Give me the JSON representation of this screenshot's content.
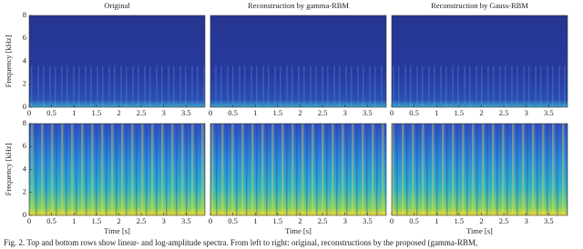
{
  "figure": {
    "titles": [
      "Original",
      "Reconstruction by gamma-RBM",
      "Reconstruction by Gauss-RBM"
    ],
    "rows": [
      {
        "ylabel": "Frequency [kHz]",
        "ylim": [
          0,
          8
        ],
        "yticks": [
          0,
          2,
          4,
          6,
          8
        ],
        "scale": "linear"
      },
      {
        "ylabel": "Frequency [kHz]",
        "ylim": [
          0,
          8
        ],
        "yticks": [
          0,
          2,
          4,
          6,
          8
        ],
        "scale": "log"
      }
    ],
    "xlabel": "Time [s]",
    "xlim": [
      0,
      3.92
    ],
    "xticks": [
      0,
      0.5,
      1,
      1.5,
      2,
      2.5,
      3,
      3.5
    ]
  },
  "caption": "Fig. 2.  Top and bottom rows show linear- and log-amplitude spectra. From left to right: original, reconstructions by the proposed (gamma-RBM,"
}
